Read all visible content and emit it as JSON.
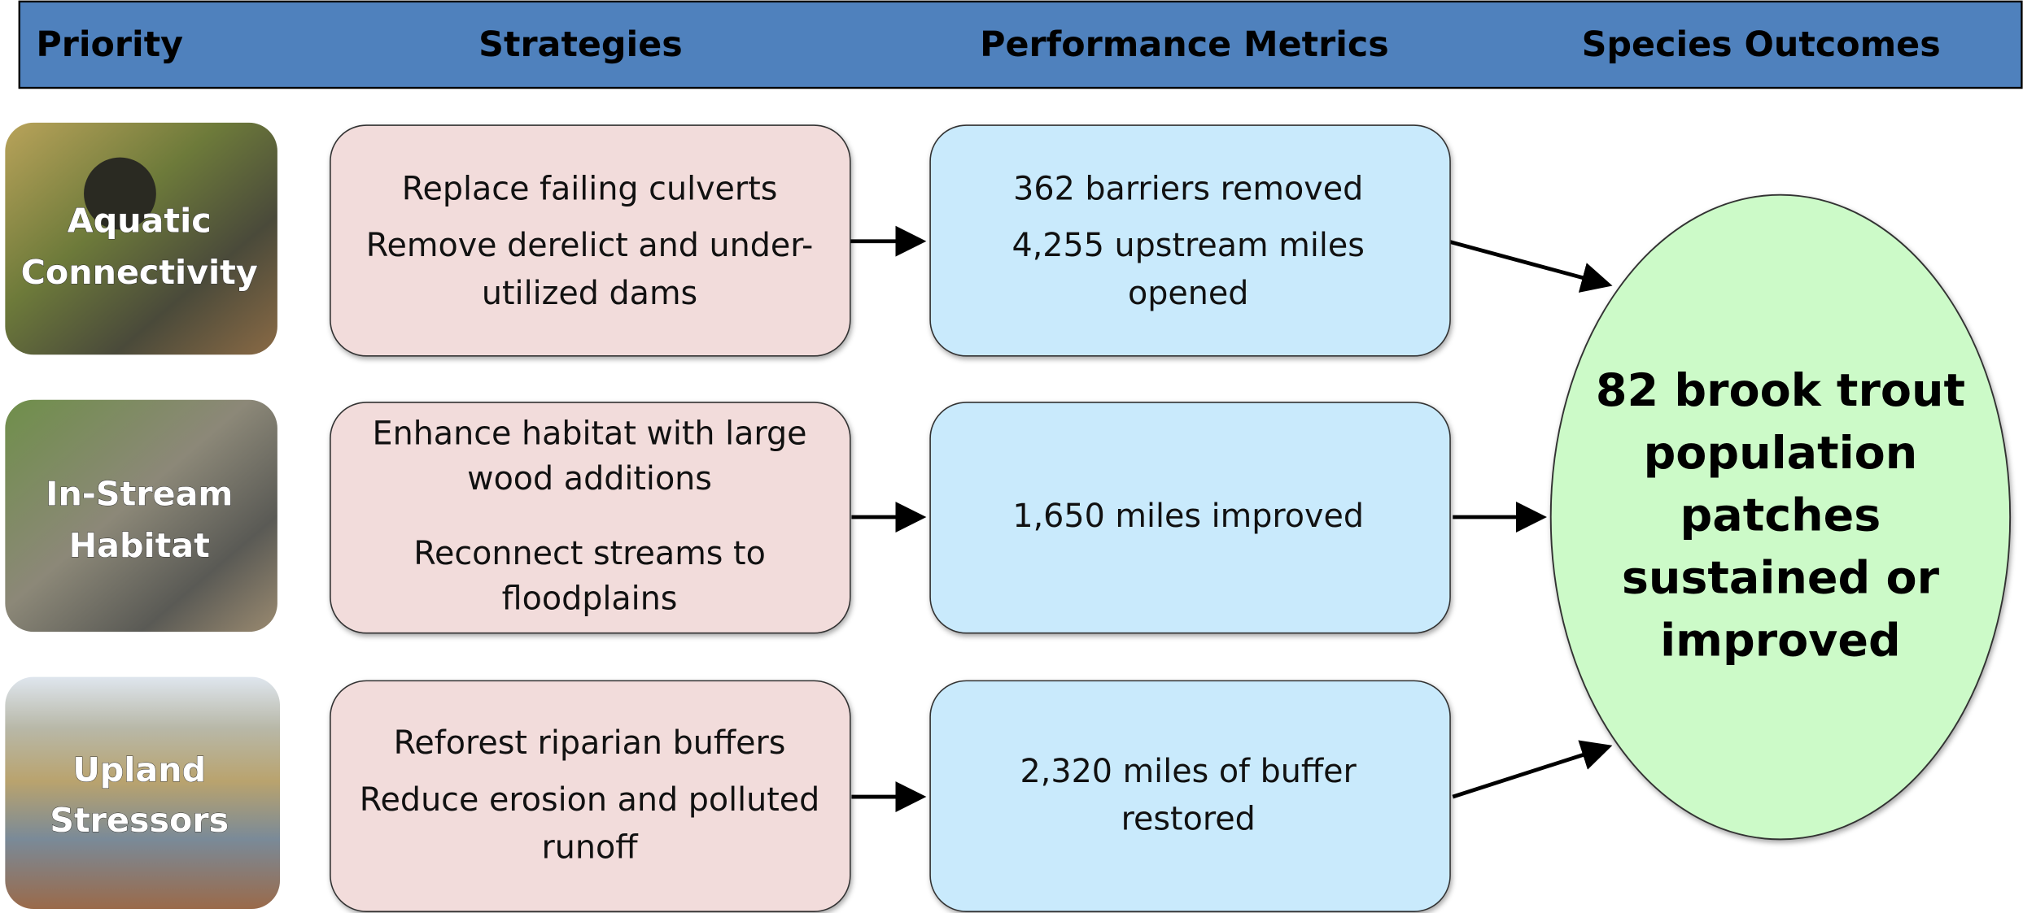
{
  "header": {
    "columns": [
      "Priority",
      "Strategies",
      "Performance Metrics",
      "Species Outcomes"
    ]
  },
  "rows": [
    {
      "priority": [
        "Aquatic",
        "Connectivity"
      ],
      "strategies": [
        "Replace failing culverts",
        "Remove derelict and under-",
        "utilized dams"
      ],
      "metrics": [
        "362 barriers removed",
        "4,255 upstream miles",
        "opened"
      ]
    },
    {
      "priority": [
        "In-Stream",
        "Habitat"
      ],
      "strategies": [
        "Enhance habitat with large",
        "wood additions",
        "Reconnect streams to",
        "floodplains"
      ],
      "metrics": [
        "1,650 miles improved"
      ]
    },
    {
      "priority": [
        "Upland",
        "Stressors"
      ],
      "strategies": [
        "Reforest riparian buffers",
        "Reduce erosion and polluted",
        "runoff"
      ],
      "metrics": [
        "2,320 miles of buffer",
        "restored"
      ]
    }
  ],
  "outcome": [
    "82 brook trout",
    "population",
    "patches",
    "sustained or",
    "improved"
  ]
}
